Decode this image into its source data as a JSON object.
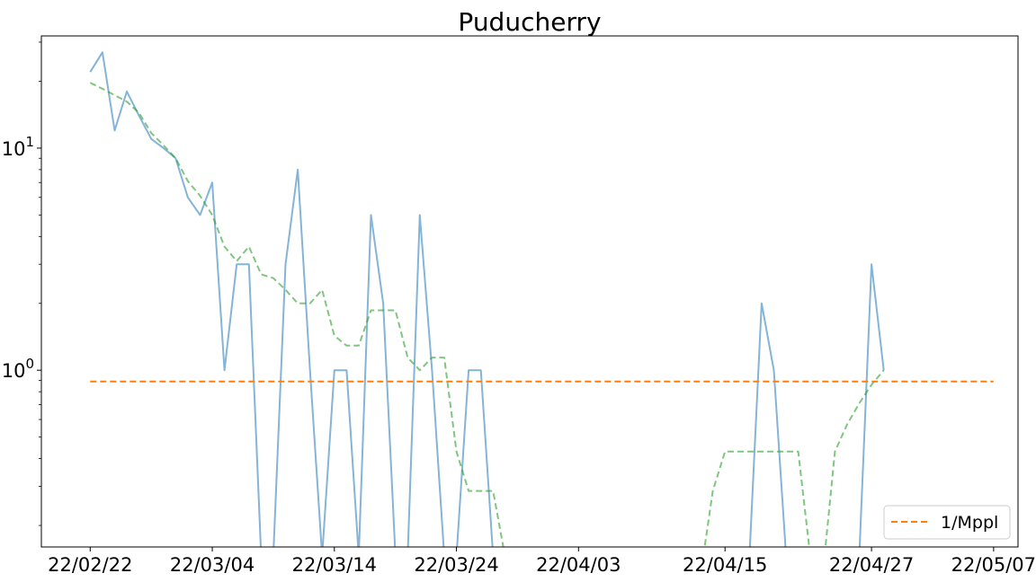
{
  "chart_data": {
    "type": "line",
    "title": "Puducherry",
    "xlabel": "",
    "ylabel": "",
    "y_scale": "log",
    "x_axis": "date",
    "x_range": [
      "2022-02-18",
      "2022-05-09"
    ],
    "y_range": [
      0.16,
      32
    ],
    "x_ticks": [
      {
        "date": "2022-02-22",
        "label": "22/02/22"
      },
      {
        "date": "2022-03-04",
        "label": "22/03/04"
      },
      {
        "date": "2022-03-14",
        "label": "22/03/14"
      },
      {
        "date": "2022-03-24",
        "label": "22/03/24"
      },
      {
        "date": "2022-04-03",
        "label": "22/04/03"
      },
      {
        "date": "2022-04-15",
        "label": "22/04/15"
      },
      {
        "date": "2022-04-27",
        "label": "22/04/27"
      },
      {
        "date": "2022-05-07",
        "label": "22/05/07"
      }
    ],
    "y_ticks": [
      {
        "value": 1,
        "base": "10",
        "exp": "0"
      },
      {
        "value": 10,
        "base": "10",
        "exp": "1"
      }
    ],
    "grid": false,
    "legend_position": "lower-right",
    "legend": [
      "1/Mppl"
    ],
    "series": [
      {
        "style": "solid",
        "color": "#1f77b4",
        "values": [
          {
            "x": "2022-02-22",
            "y": 22
          },
          {
            "x": "2022-02-23",
            "y": 27
          },
          {
            "x": "2022-02-24",
            "y": 12
          },
          {
            "x": "2022-02-25",
            "y": 18
          },
          {
            "x": "2022-02-26",
            "y": 14
          },
          {
            "x": "2022-02-27",
            "y": 11
          },
          {
            "x": "2022-02-28",
            "y": 10
          },
          {
            "x": "2022-03-01",
            "y": 9
          },
          {
            "x": "2022-03-02",
            "y": 6
          },
          {
            "x": "2022-03-03",
            "y": 5
          },
          {
            "x": "2022-03-04",
            "y": 7
          },
          {
            "x": "2022-03-05",
            "y": 1
          },
          {
            "x": "2022-03-06",
            "y": 3
          },
          {
            "x": "2022-03-07",
            "y": 3
          },
          {
            "x": "2022-03-08",
            "y": 0
          },
          {
            "x": "2022-03-09",
            "y": 0
          },
          {
            "x": "2022-03-10",
            "y": 3
          },
          {
            "x": "2022-03-11",
            "y": 8
          },
          {
            "x": "2022-03-12",
            "y": 1
          },
          {
            "x": "2022-03-13",
            "y": 0
          },
          {
            "x": "2022-03-14",
            "y": 1
          },
          {
            "x": "2022-03-15",
            "y": 1
          },
          {
            "x": "2022-03-16",
            "y": 0
          },
          {
            "x": "2022-03-17",
            "y": 5
          },
          {
            "x": "2022-03-18",
            "y": 2
          },
          {
            "x": "2022-03-19",
            "y": 0
          },
          {
            "x": "2022-03-20",
            "y": 0
          },
          {
            "x": "2022-03-21",
            "y": 5
          },
          {
            "x": "2022-03-22",
            "y": 1
          },
          {
            "x": "2022-03-23",
            "y": 0
          },
          {
            "x": "2022-03-24",
            "y": 0
          },
          {
            "x": "2022-03-25",
            "y": 1
          },
          {
            "x": "2022-03-26",
            "y": 1
          },
          {
            "x": "2022-03-27",
            "y": 0
          },
          {
            "x": "2022-04-17",
            "y": 0
          },
          {
            "x": "2022-04-18",
            "y": 2
          },
          {
            "x": "2022-04-19",
            "y": 1
          },
          {
            "x": "2022-04-20",
            "y": 0
          },
          {
            "x": "2022-04-26",
            "y": 0
          },
          {
            "x": "2022-04-27",
            "y": 3
          },
          {
            "x": "2022-04-28",
            "y": 1
          }
        ]
      },
      {
        "style": "dashed",
        "color": "#2ca02c",
        "segments": [
          [
            {
              "x": "2022-02-22",
              "y": 19.7
            },
            {
              "x": "2022-02-23",
              "y": 18.5
            },
            {
              "x": "2022-02-24",
              "y": 17.3
            },
            {
              "x": "2022-02-25",
              "y": 16.2
            },
            {
              "x": "2022-02-26",
              "y": 14.4
            },
            {
              "x": "2022-02-27",
              "y": 11.7
            },
            {
              "x": "2022-02-28",
              "y": 10.3
            },
            {
              "x": "2022-03-01",
              "y": 9.0
            },
            {
              "x": "2022-03-02",
              "y": 7.1
            },
            {
              "x": "2022-03-03",
              "y": 6.1
            },
            {
              "x": "2022-03-04",
              "y": 5.0
            },
            {
              "x": "2022-03-05",
              "y": 3.6
            },
            {
              "x": "2022-03-06",
              "y": 3.1
            },
            {
              "x": "2022-03-07",
              "y": 3.6
            },
            {
              "x": "2022-03-08",
              "y": 2.7
            },
            {
              "x": "2022-03-09",
              "y": 2.6
            },
            {
              "x": "2022-03-10",
              "y": 2.3
            },
            {
              "x": "2022-03-11",
              "y": 2.0
            },
            {
              "x": "2022-03-12",
              "y": 2.0
            },
            {
              "x": "2022-03-13",
              "y": 2.3
            },
            {
              "x": "2022-03-14",
              "y": 1.43
            },
            {
              "x": "2022-03-15",
              "y": 1.29
            },
            {
              "x": "2022-03-16",
              "y": 1.29
            },
            {
              "x": "2022-03-17",
              "y": 1.86
            },
            {
              "x": "2022-03-18",
              "y": 1.86
            },
            {
              "x": "2022-03-19",
              "y": 1.86
            },
            {
              "x": "2022-03-20",
              "y": 1.14
            },
            {
              "x": "2022-03-21",
              "y": 1.0
            },
            {
              "x": "2022-03-22",
              "y": 1.14
            },
            {
              "x": "2022-03-23",
              "y": 1.14
            },
            {
              "x": "2022-03-24",
              "y": 0.43
            },
            {
              "x": "2022-03-25",
              "y": 0.286
            },
            {
              "x": "2022-03-26",
              "y": 0.286
            },
            {
              "x": "2022-03-27",
              "y": 0.286
            },
            {
              "x": "2022-03-28",
              "y": 0.143
            },
            {
              "x": "2022-03-29",
              "y": 0.12
            }
          ],
          [
            {
              "x": "2022-04-13",
              "y": 0.12
            },
            {
              "x": "2022-04-14",
              "y": 0.286
            },
            {
              "x": "2022-04-15",
              "y": 0.43
            },
            {
              "x": "2022-04-16",
              "y": 0.43
            },
            {
              "x": "2022-04-17",
              "y": 0.43
            },
            {
              "x": "2022-04-18",
              "y": 0.43
            },
            {
              "x": "2022-04-19",
              "y": 0.43
            },
            {
              "x": "2022-04-20",
              "y": 0.43
            },
            {
              "x": "2022-04-21",
              "y": 0.43
            },
            {
              "x": "2022-04-22",
              "y": 0.143
            },
            {
              "x": "2022-04-23",
              "y": 0.12
            }
          ],
          [
            {
              "x": "2022-04-23",
              "y": 0.12
            },
            {
              "x": "2022-04-24",
              "y": 0.43
            },
            {
              "x": "2022-04-25",
              "y": 0.57
            },
            {
              "x": "2022-04-26",
              "y": 0.71
            },
            {
              "x": "2022-04-27",
              "y": 0.86
            },
            {
              "x": "2022-04-28",
              "y": 1.0
            }
          ]
        ]
      },
      {
        "name": "1/Mppl",
        "style": "dashed",
        "color": "#ff7f0e",
        "values": [
          {
            "x": "2022-02-22",
            "y": 0.89
          },
          {
            "x": "2022-05-07",
            "y": 0.89
          }
        ]
      }
    ]
  }
}
